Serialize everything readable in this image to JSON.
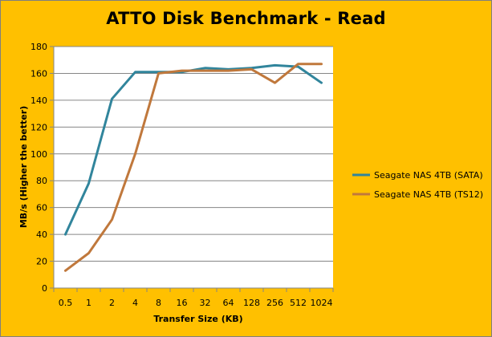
{
  "chart_data": {
    "type": "line",
    "title": "ATTO Disk Benchmark - Read",
    "xlabel": "Transfer Size (KB)",
    "ylabel": "MB/s (Higher the better)",
    "categories": [
      "0.5",
      "1",
      "2",
      "4",
      "8",
      "16",
      "32",
      "64",
      "128",
      "256",
      "512",
      "1024"
    ],
    "ylim": [
      0,
      180
    ],
    "yticks": [
      0,
      20,
      40,
      60,
      80,
      100,
      120,
      140,
      160,
      180
    ],
    "grid": "horizontal",
    "legend_position": "right",
    "series": [
      {
        "name": "Seagate NAS 4TB (SATA)",
        "color": "#31859c",
        "values": [
          40,
          78,
          141,
          161,
          161,
          161,
          164,
          163,
          164,
          166,
          165,
          153
        ]
      },
      {
        "name": "Seagate NAS 4TB (TS12)",
        "color": "#c0783c",
        "values": [
          13,
          26,
          51,
          100,
          160,
          162,
          162,
          162,
          163,
          153,
          167,
          167
        ]
      }
    ]
  }
}
